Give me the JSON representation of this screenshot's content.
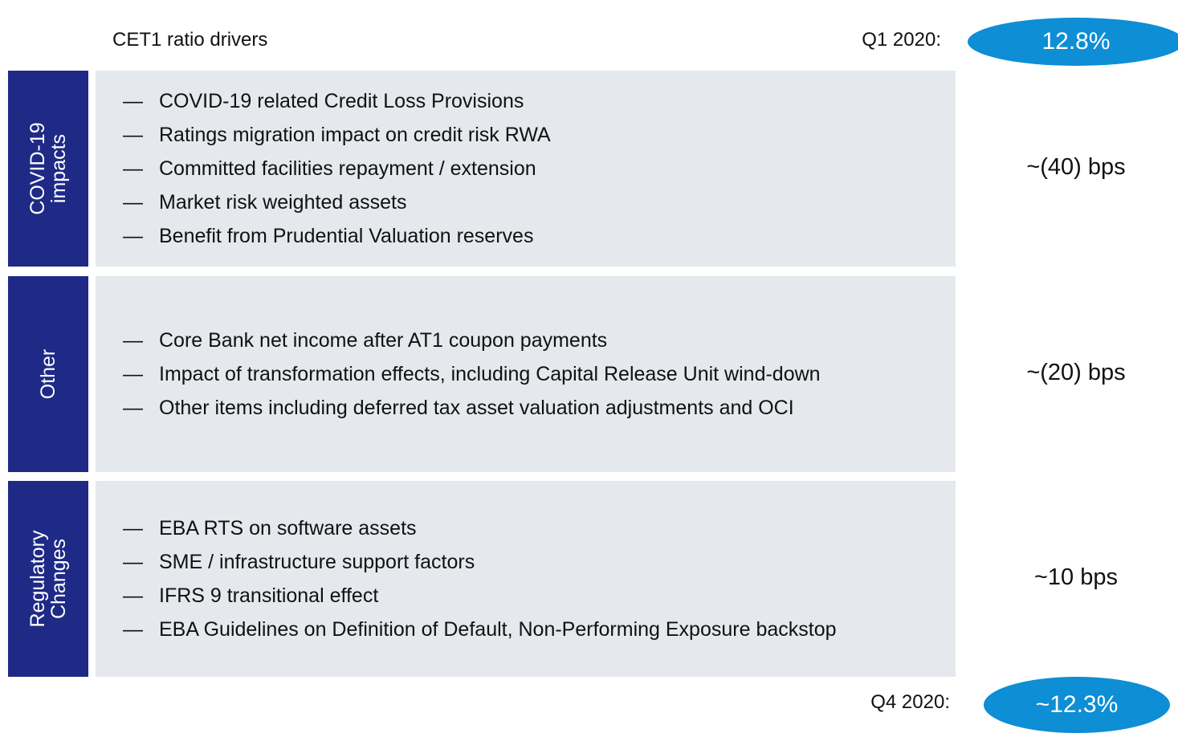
{
  "header": {
    "title": "CET1 ratio drivers",
    "start_label": "Q1 2020:",
    "start_value": "12.8%"
  },
  "sections": [
    {
      "label": [
        "COVID-19",
        "impacts"
      ],
      "items": [
        "COVID-19 related Credit Loss Provisions",
        "Ratings migration impact on credit risk RWA",
        "Committed facilities repayment / extension",
        "Market risk weighted assets",
        "Benefit from Prudential Valuation reserves"
      ],
      "impact": "~(40) bps"
    },
    {
      "label": [
        "Other"
      ],
      "items": [
        "Core Bank net income after AT1 coupon payments",
        "Impact of transformation effects, including Capital Release Unit wind-down",
        "Other items including deferred tax asset valuation adjustments and OCI"
      ],
      "impact": "~(20) bps"
    },
    {
      "label": [
        "Regulatory",
        "Changes"
      ],
      "items": [
        "EBA RTS on software assets",
        "SME / infrastructure support factors",
        "IFRS 9 transitional effect",
        "EBA Guidelines on Definition of Default, Non-Performing Exposure backstop"
      ],
      "impact": "~10 bps"
    }
  ],
  "footer": {
    "end_label": "Q4 2020:",
    "end_value": "~12.3%"
  }
}
